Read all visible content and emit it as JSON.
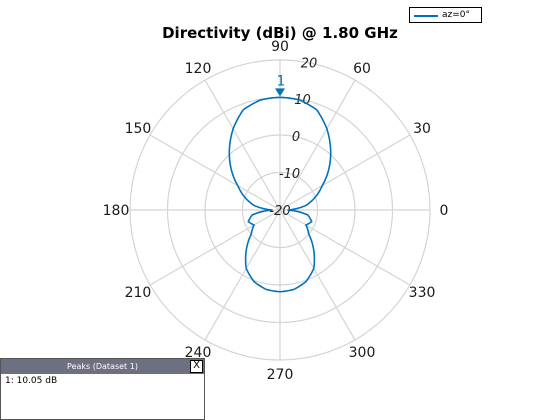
{
  "chart_data": {
    "type": "polar",
    "title": "Directivity (dBi) @ 1.80 GHz",
    "angle_ticks": [
      0,
      30,
      60,
      90,
      120,
      150,
      180,
      210,
      240,
      270,
      300,
      330
    ],
    "angle_tick_labels": [
      "0",
      "30",
      "60",
      "90",
      "120",
      "150",
      "180",
      "210",
      "240",
      "270",
      "300",
      "330"
    ],
    "rlim": [
      -20,
      20
    ],
    "rticks": [
      -20,
      -10,
      0,
      10,
      20
    ],
    "rtick_labels": [
      "-20",
      "-10",
      "0",
      "10",
      "20"
    ],
    "grid": true,
    "legend_position": "top-right",
    "series": [
      {
        "name": "az=0°",
        "color": "#0072BD",
        "angles_deg": [
          0,
          10,
          20,
          30,
          40,
          50,
          60,
          70,
          80,
          90,
          100,
          110,
          120,
          130,
          140,
          150,
          160,
          170,
          180,
          190,
          200,
          210,
          220,
          230,
          240,
          250,
          260,
          270,
          280,
          290,
          300,
          310,
          320,
          330,
          340,
          350
        ],
        "values_dbi": [
          -18,
          -13,
          -10,
          -7,
          -3,
          1,
          5,
          8.5,
          9.8,
          10.05,
          9.8,
          8.5,
          5,
          1,
          -3,
          -7,
          -10,
          -13,
          -18,
          -12.5,
          -11,
          -12,
          -10,
          -6,
          -2,
          0.3,
          1.5,
          1.8,
          1.5,
          0.3,
          -2,
          -6,
          -10,
          -12,
          -11,
          -12.5
        ]
      }
    ],
    "marker": {
      "label": "1",
      "angle_deg": 90,
      "value_dbi": 10.05
    }
  },
  "peaks_panel": {
    "title": "Peaks (Dataset 1)",
    "close_label": "X",
    "entries": [
      "1: 10.05 dB"
    ]
  }
}
